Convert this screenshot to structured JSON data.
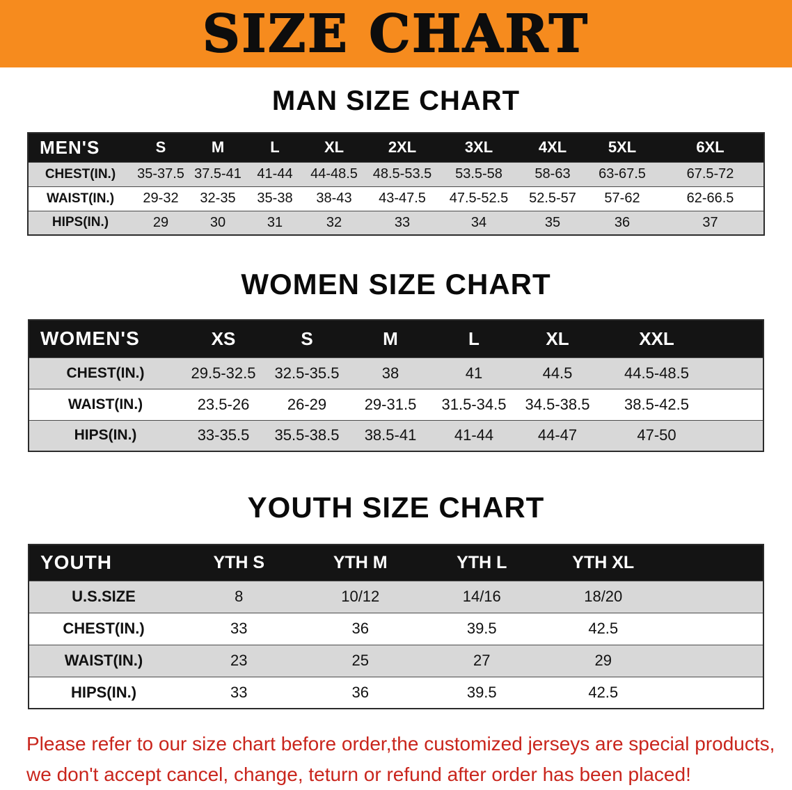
{
  "banner": {
    "title": "SIZE CHART",
    "bg_color": "#f68b1e",
    "text_color": "#0d0d0d"
  },
  "men": {
    "heading": "MAN SIZE CHART",
    "columns": [
      "MEN'S",
      "S",
      "M",
      "L",
      "XL",
      "2XL",
      "3XL",
      "4XL",
      "5XL",
      "6XL"
    ],
    "rows": [
      {
        "label": "CHEST(IN.)",
        "values": [
          "35-37.5",
          "37.5-41",
          "41-44",
          "44-48.5",
          "48.5-53.5",
          "53.5-58",
          "58-63",
          "63-67.5",
          "67.5-72"
        ]
      },
      {
        "label": "WAIST(IN.)",
        "values": [
          "29-32",
          "32-35",
          "35-38",
          "38-43",
          "43-47.5",
          "47.5-52.5",
          "52.5-57",
          "57-62",
          "62-66.5"
        ]
      },
      {
        "label": "HIPS(IN.)",
        "values": [
          "29",
          "30",
          "31",
          "32",
          "33",
          "34",
          "35",
          "36",
          "37"
        ]
      }
    ]
  },
  "women": {
    "heading": "WOMEN SIZE CHART",
    "columns": [
      "WOMEN'S",
      "XS",
      "S",
      "M",
      "L",
      "XL",
      "XXL"
    ],
    "rows": [
      {
        "label": "CHEST(IN.)",
        "values": [
          "29.5-32.5",
          "32.5-35.5",
          "38",
          "41",
          "44.5",
          "44.5-48.5"
        ]
      },
      {
        "label": "WAIST(IN.)",
        "values": [
          "23.5-26",
          "26-29",
          "29-31.5",
          "31.5-34.5",
          "34.5-38.5",
          "38.5-42.5"
        ]
      },
      {
        "label": "HIPS(IN.)",
        "values": [
          "33-35.5",
          "35.5-38.5",
          "38.5-41",
          "41-44",
          "44-47",
          "47-50"
        ]
      }
    ]
  },
  "youth": {
    "heading": "YOUTH SIZE CHART",
    "columns": [
      "YOUTH",
      "YTH S",
      "YTH M",
      "YTH L",
      "YTH XL"
    ],
    "rows": [
      {
        "label": "U.S.SIZE",
        "values": [
          "8",
          "10/12",
          "14/16",
          "18/20"
        ]
      },
      {
        "label": "CHEST(IN.)",
        "values": [
          "33",
          "36",
          "39.5",
          "42.5"
        ]
      },
      {
        "label": "WAIST(IN.)",
        "values": [
          "23",
          "25",
          "27",
          "29"
        ]
      },
      {
        "label": "HIPS(IN.)",
        "values": [
          "33",
          "36",
          "39.5",
          "42.5"
        ]
      }
    ]
  },
  "disclaimer": {
    "line1": "Please refer to our size chart before order,the customized jerseys are special products,",
    "line2": "we don't accept cancel, change, teturn or refund after order has been placed!",
    "color": "#c9251c"
  }
}
